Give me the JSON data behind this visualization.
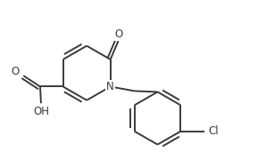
{
  "bg_color": "#ffffff",
  "line_color": "#3a3a3a",
  "line_width": 1.4,
  "font_size": 8.5,
  "figsize": [
    2.98,
    1.89
  ],
  "xlim": [
    0.0,
    5.8
  ],
  "ylim": [
    0.0,
    3.8
  ]
}
